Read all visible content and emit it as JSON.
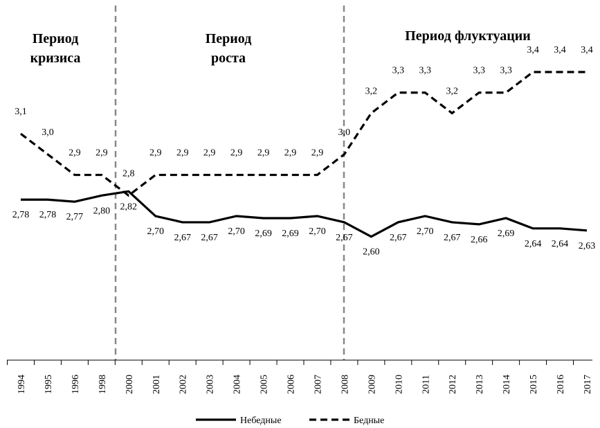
{
  "chart_data": {
    "type": "line",
    "categories": [
      "1994",
      "1995",
      "1996",
      "1998",
      "2000",
      "2001",
      "2002",
      "2003",
      "2004",
      "2005",
      "2006",
      "2007",
      "2008",
      "2009",
      "2010",
      "2011",
      "2012",
      "2013",
      "2014",
      "2015",
      "2016",
      "2017"
    ],
    "series": [
      {
        "name": "Небедные",
        "color": "#000000",
        "dash": false,
        "values": [
          2.78,
          2.78,
          2.77,
          2.8,
          2.82,
          2.7,
          2.67,
          2.67,
          2.7,
          2.69,
          2.69,
          2.7,
          2.67,
          2.6,
          2.67,
          2.7,
          2.67,
          2.66,
          2.69,
          2.64,
          2.64,
          2.63
        ],
        "value_labels": [
          "2,78",
          "2,78",
          "2,77",
          "2,80",
          "2,82",
          "2,70",
          "2,67",
          "2,67",
          "2,70",
          "2,69",
          "2,69",
          "2,70",
          "2,67",
          "2,60",
          "2,67",
          "2,70",
          "2,67",
          "2,66",
          "2,69",
          "2,64",
          "2,64",
          "2,63"
        ]
      },
      {
        "name": "Бедные",
        "color": "#000000",
        "dash": true,
        "values": [
          3.1,
          3.0,
          2.9,
          2.9,
          2.8,
          2.9,
          2.9,
          2.9,
          2.9,
          2.9,
          2.9,
          2.9,
          3.0,
          3.2,
          3.3,
          3.3,
          3.2,
          3.3,
          3.3,
          3.4,
          3.4,
          3.4
        ],
        "value_labels": [
          "3,1",
          "3,0",
          "2,9",
          "2,9",
          "2,8",
          "2,9",
          "2,9",
          "2,9",
          "2,9",
          "2,9",
          "2,9",
          "2,9",
          "3,0",
          "3,2",
          "3,3",
          "3,3",
          "3,2",
          "3,3",
          "3,3",
          "3,4",
          "3,4",
          "3,4"
        ]
      }
    ],
    "ylim": [
      2.0,
      3.75
    ],
    "annotations": [
      "Период кризиса",
      "Период роста",
      "Период флуктуации"
    ],
    "legend": "bottom"
  }
}
